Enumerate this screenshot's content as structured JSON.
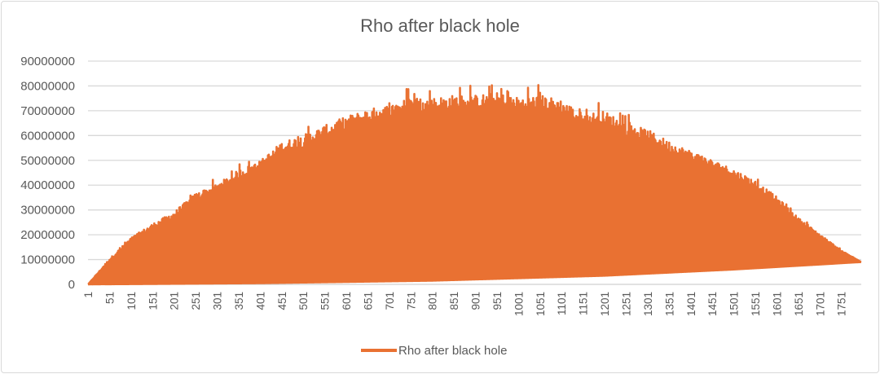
{
  "chart_data": {
    "type": "line",
    "title": "Rho after black hole",
    "xlabel": "",
    "ylabel": "",
    "x_range": [
      1,
      1797
    ],
    "ylim": [
      0,
      90000000
    ],
    "y_ticks": [
      "0",
      "10000000",
      "20000000",
      "30000000",
      "40000000",
      "50000000",
      "60000000",
      "70000000",
      "80000000",
      "90000000"
    ],
    "x_ticks": [
      "1",
      "51",
      "101",
      "151",
      "201",
      "251",
      "301",
      "351",
      "401",
      "451",
      "501",
      "551",
      "601",
      "651",
      "701",
      "751",
      "801",
      "851",
      "901",
      "951",
      "1001",
      "1051",
      "1101",
      "1151",
      "1201",
      "1251",
      "1301",
      "1351",
      "1401",
      "1451",
      "1501",
      "1551",
      "1601",
      "1651",
      "1701",
      "1751"
    ],
    "grid": true,
    "legend_position": "bottom",
    "series": [
      {
        "name": "Rho after black hole",
        "color": "#E97132",
        "note_oscillation": "values oscillate every point between lower and upper envelope",
        "upper_envelope": {
          "x": [
            1,
            51,
            101,
            151,
            201,
            251,
            301,
            351,
            401,
            451,
            501,
            551,
            601,
            651,
            701,
            751,
            801,
            851,
            901,
            951,
            1001,
            1051,
            1101,
            1151,
            1201,
            1251,
            1301,
            1351,
            1401,
            1451,
            1501,
            1551,
            1601,
            1651,
            1701,
            1751,
            1797
          ],
          "y": [
            0,
            11000000,
            20000000,
            26000000,
            31000000,
            39000000,
            43000000,
            49000000,
            53000000,
            61000000,
            64000000,
            68000000,
            72000000,
            75000000,
            77000000,
            80000000,
            80000000,
            81000000,
            81000000,
            82000000,
            80000000,
            81000000,
            79000000,
            73000000,
            74000000,
            69000000,
            66000000,
            61000000,
            57000000,
            53000000,
            49000000,
            44000000,
            37000000,
            28000000,
            21000000,
            14000000,
            9000000
          ]
        },
        "lower_envelope": {
          "x": [
            1,
            400,
            800,
            1200,
            1500,
            1797
          ],
          "y": [
            0,
            500000,
            1500000,
            3500000,
            6000000,
            9000000
          ]
        }
      }
    ]
  }
}
